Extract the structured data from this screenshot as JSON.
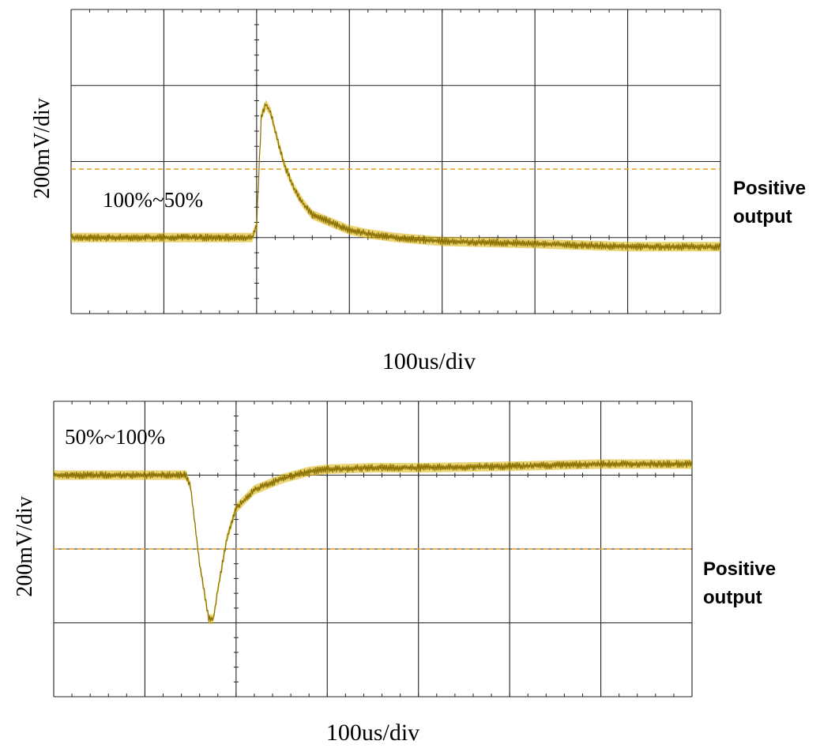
{
  "chart_data": [
    {
      "type": "line",
      "title": "",
      "annotation": "100%~50%",
      "xlabel": "100us/div",
      "ylabel": "200mV/div",
      "side_label": [
        "Positive",
        "output"
      ],
      "x_unit": "div",
      "y_unit": "div",
      "xlim": [
        0,
        7
      ],
      "ylim": [
        -1,
        3
      ],
      "grid": true,
      "trigger_time_div": 2,
      "reference_level_div": 0.9,
      "series": [
        {
          "x": [
            0,
            1.95,
            2.0,
            2.05,
            2.1,
            2.15,
            2.2,
            2.3,
            2.4,
            2.5,
            2.6,
            2.8,
            3.0,
            3.2,
            3.5,
            4.0,
            5.0,
            6.0,
            7.0
          ],
          "y": [
            0,
            0,
            0.15,
            1.6,
            1.75,
            1.65,
            1.4,
            0.95,
            0.65,
            0.45,
            0.3,
            0.2,
            0.1,
            0.05,
            0.0,
            -0.05,
            -0.08,
            -0.12,
            -0.12
          ]
        }
      ],
      "colors": {
        "trace": "#d8b000",
        "trace_dark": "#8a6f00",
        "grid": "#222222",
        "reference": "#e0a020"
      }
    },
    {
      "type": "line",
      "title": "",
      "annotation": "50%~100%",
      "xlabel": "100us/div",
      "ylabel": "200mV/div",
      "side_label": [
        "Positive",
        "output"
      ],
      "x_unit": "div",
      "y_unit": "div",
      "xlim": [
        0,
        7
      ],
      "ylim": [
        -3,
        1
      ],
      "grid": true,
      "trigger_time_div": 2,
      "reference_level_div": -1,
      "series": [
        {
          "x": [
            0,
            1.45,
            1.5,
            1.6,
            1.7,
            1.75,
            1.8,
            1.9,
            2.0,
            2.2,
            2.5,
            2.8,
            3.0,
            3.5,
            4.0,
            5.0,
            6.0,
            7.0
          ],
          "y": [
            0,
            0,
            -0.15,
            -1.2,
            -1.95,
            -1.95,
            -1.55,
            -0.85,
            -0.45,
            -0.2,
            -0.05,
            0.05,
            0.08,
            0.1,
            0.1,
            0.12,
            0.15,
            0.15
          ]
        }
      ],
      "colors": {
        "trace": "#d8b000",
        "trace_dark": "#8a6f00",
        "grid": "#222222",
        "reference": "#e0a020"
      }
    }
  ]
}
